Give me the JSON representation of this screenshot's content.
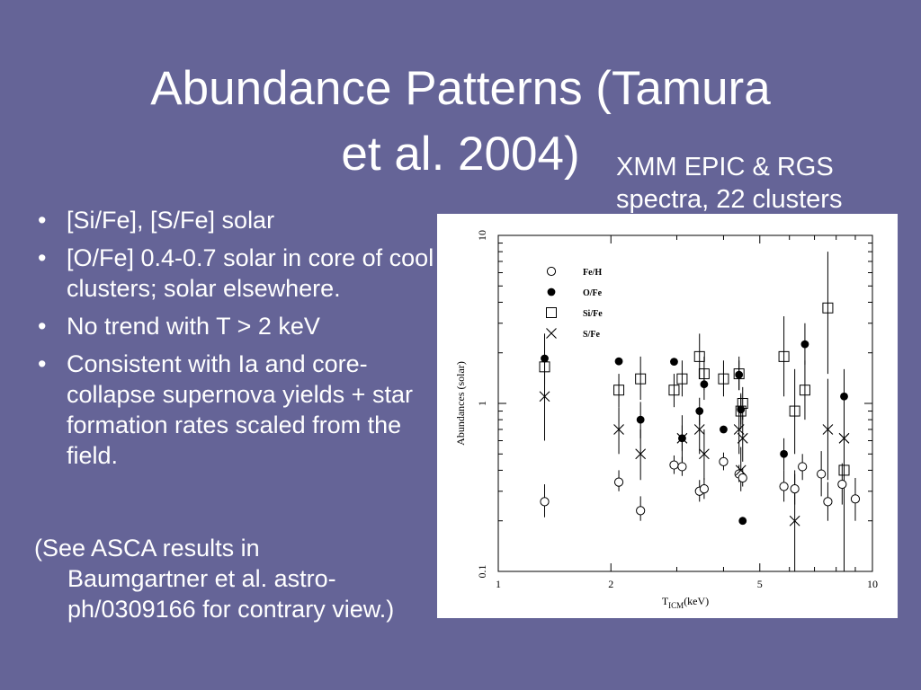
{
  "slide": {
    "title_line1": "Abundance Patterns (Tamura",
    "title_line2": "et al. 2004)",
    "subtitle_line1": "XMM EPIC & RGS",
    "subtitle_line2": "spectra, 22 clusters",
    "bullets": [
      "[Si/Fe], [S/Fe] solar",
      "[O/Fe] 0.4-0.7 solar in core of cool clusters; solar elsewhere.",
      "No trend with T > 2 keV",
      "Consistent with Ia and core-collapse supernova yields + star formation rates scaled from the field."
    ],
    "bullet_symbol": "•",
    "note_line1": "(See ASCA results in",
    "note_rest": "Baumgartner et al. astro-ph/0309166 for contrary view.)"
  },
  "colors": {
    "background": "#656497",
    "text": "#ffffff",
    "plot_bg": "#ffffff"
  },
  "chart_data": {
    "type": "scatter",
    "xlabel": "T",
    "xlabel_sub": "ICM",
    "xlabel_unit": "(keV)",
    "ylabel": "Abundances (solar)",
    "xscale": "log",
    "yscale": "log",
    "xlim": [
      1,
      10
    ],
    "ylim": [
      0.1,
      10
    ],
    "xticks": [
      1,
      2,
      5,
      10
    ],
    "xtick_labels": [
      "1",
      "2",
      "5",
      "10"
    ],
    "yticks": [
      0.1,
      1,
      10
    ],
    "ytick_labels": [
      "0.1",
      "1",
      "10"
    ],
    "legend_position": "top-left",
    "series": [
      {
        "name": "Fe/H",
        "marker": "open-circle",
        "points": [
          {
            "x": 1.33,
            "y": 0.26,
            "lo": 0.21,
            "hi": 0.33
          },
          {
            "x": 2.1,
            "y": 0.34,
            "lo": 0.3,
            "hi": 0.4
          },
          {
            "x": 2.4,
            "y": 0.23,
            "lo": 0.2,
            "hi": 0.28
          },
          {
            "x": 2.95,
            "y": 0.43,
            "lo": 0.38,
            "hi": 0.49
          },
          {
            "x": 3.1,
            "y": 0.42,
            "lo": 0.37,
            "hi": 0.48
          },
          {
            "x": 3.45,
            "y": 0.3,
            "lo": 0.26,
            "hi": 0.35
          },
          {
            "x": 3.55,
            "y": 0.31,
            "lo": 0.27,
            "hi": 0.36
          },
          {
            "x": 4.0,
            "y": 0.45,
            "lo": 0.4,
            "hi": 0.51
          },
          {
            "x": 4.4,
            "y": 0.38,
            "lo": 0.34,
            "hi": 0.43
          },
          {
            "x": 4.5,
            "y": 0.36,
            "lo": 0.32,
            "hi": 0.41
          },
          {
            "x": 5.8,
            "y": 0.32,
            "lo": 0.26,
            "hi": 0.4
          },
          {
            "x": 6.2,
            "y": 0.31,
            "lo": 0.25,
            "hi": 0.38
          },
          {
            "x": 6.5,
            "y": 0.42,
            "lo": 0.35,
            "hi": 0.5
          },
          {
            "x": 7.3,
            "y": 0.38,
            "lo": 0.28,
            "hi": 0.52
          },
          {
            "x": 7.6,
            "y": 0.26,
            "lo": 0.2,
            "hi": 0.34
          },
          {
            "x": 8.3,
            "y": 0.33,
            "lo": 0.25,
            "hi": 0.44
          },
          {
            "x": 9.0,
            "y": 0.27,
            "lo": 0.2,
            "hi": 0.36
          }
        ]
      },
      {
        "name": "O/Fe",
        "marker": "filled-circle",
        "points": [
          {
            "x": 1.33,
            "y": 1.85,
            "lo": 1.3,
            "hi": 2.6
          },
          {
            "x": 2.1,
            "y": 1.78,
            "lo": 1.78,
            "hi": 1.78
          },
          {
            "x": 2.4,
            "y": 0.8,
            "lo": 0.62,
            "hi": 1.02
          },
          {
            "x": 2.95,
            "y": 1.77,
            "lo": 1.77,
            "hi": 1.77
          },
          {
            "x": 3.1,
            "y": 0.62,
            "lo": 0.52,
            "hi": 0.74
          },
          {
            "x": 3.45,
            "y": 0.9,
            "lo": 0.74,
            "hi": 1.08
          },
          {
            "x": 3.55,
            "y": 1.3,
            "lo": 1.05,
            "hi": 1.6
          },
          {
            "x": 4.0,
            "y": 0.7,
            "lo": 0.7,
            "hi": 0.7
          },
          {
            "x": 4.4,
            "y": 1.48,
            "lo": 1.2,
            "hi": 1.8
          },
          {
            "x": 4.45,
            "y": 0.92,
            "lo": 0.75,
            "hi": 1.12
          },
          {
            "x": 4.5,
            "y": 0.2,
            "lo": 0.2,
            "hi": 0.2
          },
          {
            "x": 5.8,
            "y": 0.5,
            "lo": 0.4,
            "hi": 0.62
          },
          {
            "x": 6.6,
            "y": 2.25,
            "lo": 1.7,
            "hi": 3.0
          },
          {
            "x": 8.4,
            "y": 1.1,
            "lo": 0.85,
            "hi": 1.45
          }
        ]
      },
      {
        "name": "Si/Fe",
        "marker": "open-square",
        "points": [
          {
            "x": 1.33,
            "y": 1.65,
            "lo": 1.0,
            "hi": 2.6
          },
          {
            "x": 2.1,
            "y": 1.2,
            "lo": 0.95,
            "hi": 1.5
          },
          {
            "x": 2.4,
            "y": 1.4,
            "lo": 1.05,
            "hi": 1.9
          },
          {
            "x": 2.95,
            "y": 1.2,
            "lo": 0.95,
            "hi": 1.5
          },
          {
            "x": 3.1,
            "y": 1.4,
            "lo": 1.1,
            "hi": 1.8
          },
          {
            "x": 3.45,
            "y": 1.9,
            "lo": 1.4,
            "hi": 2.6
          },
          {
            "x": 3.55,
            "y": 1.5,
            "lo": 1.2,
            "hi": 1.9
          },
          {
            "x": 4.0,
            "y": 1.4,
            "lo": 1.1,
            "hi": 1.8
          },
          {
            "x": 4.4,
            "y": 1.5,
            "lo": 1.2,
            "hi": 1.9
          },
          {
            "x": 4.45,
            "y": 0.9,
            "lo": 0.7,
            "hi": 1.15
          },
          {
            "x": 4.5,
            "y": 1.0,
            "lo": 0.8,
            "hi": 1.25
          },
          {
            "x": 5.8,
            "y": 1.9,
            "lo": 1.1,
            "hi": 3.3
          },
          {
            "x": 6.2,
            "y": 0.9,
            "lo": 0.5,
            "hi": 1.6
          },
          {
            "x": 6.6,
            "y": 1.2,
            "lo": 0.8,
            "hi": 1.8
          },
          {
            "x": 7.6,
            "y": 3.7,
            "lo": 1.5,
            "hi": 8.0
          },
          {
            "x": 8.4,
            "y": 0.4,
            "lo": 0.1,
            "hi": 1.6
          }
        ]
      },
      {
        "name": "S/Fe",
        "marker": "cross",
        "points": [
          {
            "x": 1.33,
            "y": 1.1,
            "lo": 0.6,
            "hi": 1.9
          },
          {
            "x": 2.1,
            "y": 0.7,
            "lo": 0.5,
            "hi": 0.95
          },
          {
            "x": 2.4,
            "y": 0.5,
            "lo": 0.35,
            "hi": 0.7
          },
          {
            "x": 3.1,
            "y": 0.62,
            "lo": 0.45,
            "hi": 0.85
          },
          {
            "x": 3.45,
            "y": 0.7,
            "lo": 0.5,
            "hi": 0.95
          },
          {
            "x": 3.55,
            "y": 0.5,
            "lo": 0.35,
            "hi": 0.7
          },
          {
            "x": 4.4,
            "y": 0.7,
            "lo": 0.5,
            "hi": 0.95
          },
          {
            "x": 4.45,
            "y": 0.4,
            "lo": 0.3,
            "hi": 0.55
          },
          {
            "x": 4.5,
            "y": 0.62,
            "lo": 0.45,
            "hi": 0.85
          },
          {
            "x": 6.2,
            "y": 0.2,
            "lo": 0.1,
            "hi": 0.4
          },
          {
            "x": 7.6,
            "y": 0.7,
            "lo": 0.35,
            "hi": 1.4
          },
          {
            "x": 8.4,
            "y": 0.62,
            "lo": 0.3,
            "hi": 1.2
          }
        ]
      }
    ]
  }
}
